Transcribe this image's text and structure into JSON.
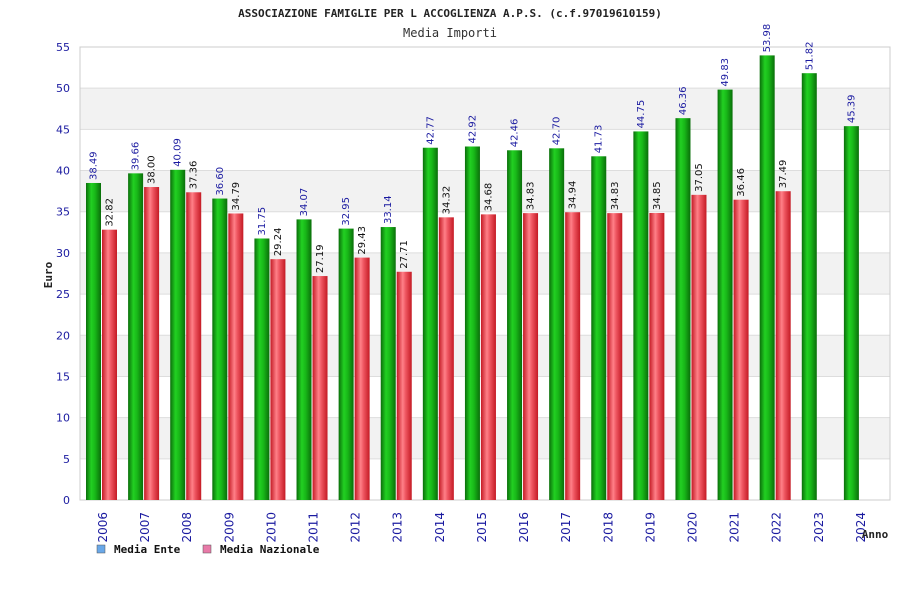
{
  "chart_data": {
    "type": "bar",
    "title": "ASSOCIAZIONE FAMIGLIE PER L ACCOGLIENZA A.P.S. (c.f.97019610159)",
    "subtitle": "Media Importi",
    "ylabel": "Euro",
    "xlabel": "Anno",
    "ylim": [
      0,
      55
    ],
    "yticks": [
      0,
      5,
      10,
      15,
      20,
      25,
      30,
      35,
      40,
      45,
      50,
      55
    ],
    "grid": true,
    "legend_position": "bottom-left",
    "categories": [
      "2006",
      "2007",
      "2008",
      "2009",
      "2010",
      "2011",
      "2012",
      "2013",
      "2014",
      "2015",
      "2016",
      "2017",
      "2018",
      "2019",
      "2020",
      "2021",
      "2022",
      "2023",
      "2024"
    ],
    "series": [
      {
        "name": "Media Ente",
        "color": "#1db31d",
        "legend_color": "#6aa8e8",
        "values": [
          38.49,
          39.66,
          40.09,
          36.6,
          31.75,
          34.07,
          32.95,
          33.14,
          42.77,
          42.92,
          42.46,
          42.7,
          41.73,
          44.75,
          46.36,
          49.83,
          53.98,
          51.82,
          45.39
        ],
        "labels": [
          "38.49",
          "39.66",
          "40.09",
          "36.60",
          "31.75",
          "34.07",
          "32.95",
          "33.14",
          "42.77",
          "42.92",
          "42.46",
          "42.70",
          "41.73",
          "44.75",
          "46.36",
          "49.83",
          "53.98",
          "51.82",
          "45.39"
        ]
      },
      {
        "name": "Media Nazionale",
        "color": "#e8323c",
        "legend_color": "#e87aa8",
        "values": [
          32.82,
          38.0,
          37.36,
          34.79,
          29.24,
          27.19,
          29.43,
          27.71,
          34.32,
          34.68,
          34.83,
          34.94,
          34.83,
          34.85,
          37.05,
          36.46,
          37.49,
          null,
          null
        ],
        "labels": [
          "32.82",
          "38.00",
          "37.36",
          "34.79",
          "29.24",
          "27.19",
          "29.43",
          "27.71",
          "34.32",
          "34.68",
          "34.83",
          "34.94",
          "34.83",
          "34.85",
          "37.05",
          "36.46",
          "37.49",
          null,
          null
        ]
      }
    ]
  }
}
